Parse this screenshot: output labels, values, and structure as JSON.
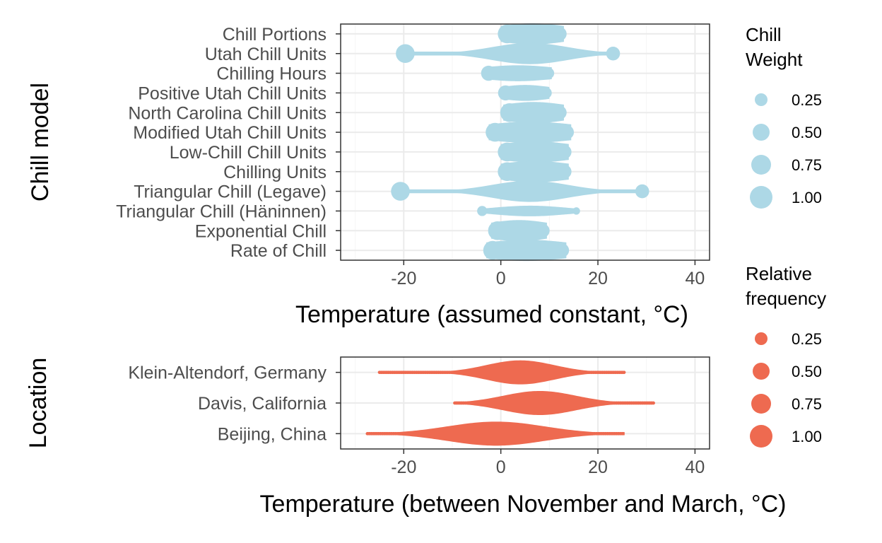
{
  "chart_data": [
    {
      "type": "scatter",
      "subtype": "beeswarm",
      "xlabel": "Temperature (assumed constant, °C)",
      "ylabel": "Chill model",
      "xlim": [
        -33,
        43
      ],
      "xticks": [
        -20,
        0,
        20,
        40
      ],
      "color": "#add8e6",
      "grid": true,
      "categories": [
        "Chill Portions",
        "Utah Chill Units",
        "Chilling Hours",
        "Positive Utah Chill Units",
        "North Carolina Chill Units",
        "Modified Utah Chill Units",
        "Low-Chill Chill Units",
        "Chilling Units",
        "Triangular Chill (Legave)",
        "Triangular Chill (Häninnen)",
        "Exponential Chill",
        "Rate of Chill"
      ],
      "series": [
        {
          "name": "Chill Portions",
          "range": [
            0,
            13
          ],
          "weight": 1.0
        },
        {
          "name": "Utah Chill Units",
          "range": [
            -21,
            24
          ],
          "weight": 1.0
        },
        {
          "name": "Chilling Hours",
          "range": [
            -3.5,
            10.5
          ],
          "weight": 0.75
        },
        {
          "name": "Positive Utah Chill Units",
          "range": [
            0,
            10
          ],
          "weight": 0.75
        },
        {
          "name": "North Carolina Chill Units",
          "range": [
            0.5,
            13
          ],
          "weight": 1.0
        },
        {
          "name": "Modified Utah Chill Units",
          "range": [
            -2.5,
            14.5
          ],
          "weight": 1.0
        },
        {
          "name": "Low-Chill Chill Units",
          "range": [
            0,
            14
          ],
          "weight": 1.0
        },
        {
          "name": "Chilling Units",
          "range": [
            0,
            14
          ],
          "weight": 1.0
        },
        {
          "name": "Triangular Chill (Legave)",
          "range": [
            -22,
            30
          ],
          "weight": 1.0
        },
        {
          "name": "Triangular Chill (Häninnen)",
          "range": [
            -4.5,
            16
          ],
          "weight": 0.5
        },
        {
          "name": "Exponential Chill",
          "range": [
            -2,
            9.5
          ],
          "weight": 1.0
        },
        {
          "name": "Rate of Chill",
          "range": [
            -3,
            13.5
          ],
          "weight": 1.0
        }
      ],
      "legend": {
        "title": "Chill Weight",
        "position": "right",
        "entries": [
          "0.25",
          "0.50",
          "0.75",
          "1.00"
        ]
      }
    },
    {
      "type": "scatter",
      "subtype": "beeswarm",
      "xlabel": "Temperature (between November and March, °C)",
      "ylabel": "Location",
      "xlim": [
        -33,
        43
      ],
      "xticks": [
        -20,
        0,
        20,
        40
      ],
      "color": "#ee6a50",
      "grid": true,
      "categories": [
        "Klein-Altendorf, Germany",
        "Davis, California",
        "Beijing, China"
      ],
      "series": [
        {
          "name": "Klein-Altendorf, Germany",
          "range": [
            -25,
            25.5
          ],
          "center": 4,
          "spread": 7
        },
        {
          "name": "Davis, California",
          "range": [
            -9.5,
            31.5
          ],
          "center": 8,
          "spread": 7.5
        },
        {
          "name": "Beijing, China",
          "range": [
            -27.5,
            25.5
          ],
          "center": -1,
          "spread": 10
        }
      ],
      "legend": {
        "title": "Relative frequency",
        "position": "right",
        "entries": [
          "0.25",
          "0.50",
          "0.75",
          "1.00"
        ]
      }
    }
  ],
  "legend_top": {
    "title_line1": "Chill",
    "title_line2": "Weight",
    "entries": [
      "0.25",
      "0.50",
      "0.75",
      "1.00"
    ]
  },
  "legend_bottom": {
    "title_line1": "Relative",
    "title_line2": "frequency",
    "entries": [
      "0.25",
      "0.50",
      "0.75",
      "1.00"
    ]
  },
  "colors": {
    "chill": "#add8e6",
    "freq": "#ee6a50"
  }
}
